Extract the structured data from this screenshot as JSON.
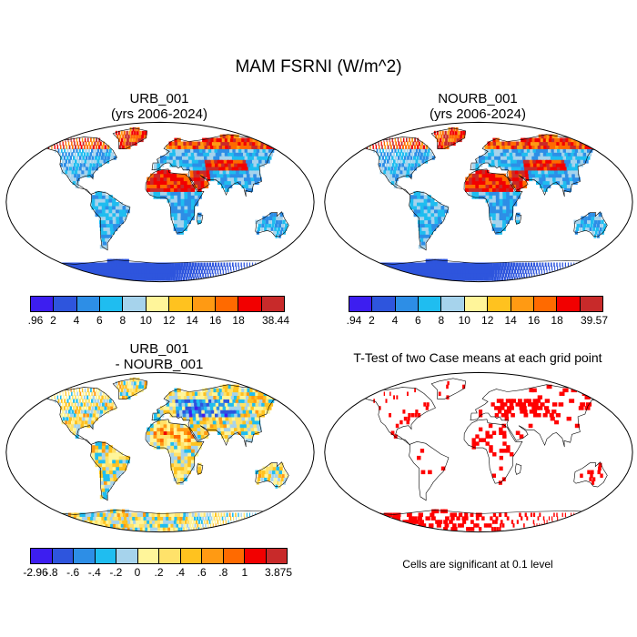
{
  "figure": {
    "title": "MAM FSRNI (W/m^2)"
  },
  "panels": [
    {
      "id": "urb",
      "title_line1": "URB_001",
      "title_line2": "(yrs 2006-2024)",
      "colorbar": {
        "labels": [
          ".96",
          "2",
          "4",
          "6",
          "8",
          "10",
          "12",
          "14",
          "16",
          "18",
          "38.44"
        ],
        "colors": [
          "#3d1ef0",
          "#2e55dd",
          "#2d8ee6",
          "#1fbdf0",
          "#a6d3ec",
          "#fff59a",
          "#ffc21f",
          "#ff9a13",
          "#ff6a00",
          "#f20000",
          "#c82a2a"
        ]
      }
    },
    {
      "id": "nourb",
      "title_line1": "NOURB_001",
      "title_line2": "(yrs 2006-2024)",
      "colorbar": {
        "labels": [
          ".94",
          "2",
          "4",
          "6",
          "8",
          "10",
          "12",
          "14",
          "16",
          "18",
          "39.57"
        ],
        "colors": [
          "#3d1ef0",
          "#2e55dd",
          "#2d8ee6",
          "#1fbdf0",
          "#a6d3ec",
          "#fff59a",
          "#ffc21f",
          "#ff9a13",
          "#ff6a00",
          "#f20000",
          "#c82a2a"
        ]
      }
    },
    {
      "id": "diff",
      "title_line1": "URB_001",
      "title_line2": "- NOURB_001",
      "colorbar": {
        "labels": [
          "-2.96",
          "-.8",
          "-.6",
          "-.4",
          "-.2",
          "0",
          ".2",
          ".4",
          ".6",
          ".8",
          "1",
          "3.875"
        ],
        "colors": [
          "#3d1ef0",
          "#2e55dd",
          "#2d8ee6",
          "#1fbdf0",
          "#a6d3ec",
          "#fff59a",
          "#ffe26a",
          "#ffc21f",
          "#ff9a13",
          "#ff6a00",
          "#f20000",
          "#c82a2a"
        ]
      }
    },
    {
      "id": "ttest",
      "title_line1": "T-Test of two Case means at each grid point",
      "note": "Cells are significant at 0.1 level",
      "signif_color": "#ff0000"
    }
  ]
}
